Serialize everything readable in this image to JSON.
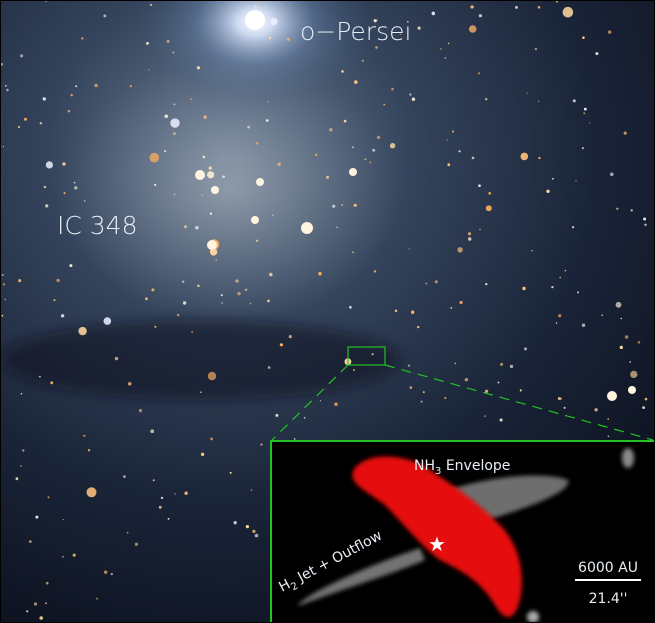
{
  "labels": {
    "star": "o−Persei",
    "cluster": "IC 348",
    "envelope": {
      "base": "NH",
      "sub": "3",
      "rest": " Envelope"
    },
    "jet": {
      "base": "H",
      "sub": "2",
      "rest": " Jet + Outflow"
    },
    "scale_physical": "6000 AU",
    "scale_angular": "21.4''"
  }
}
